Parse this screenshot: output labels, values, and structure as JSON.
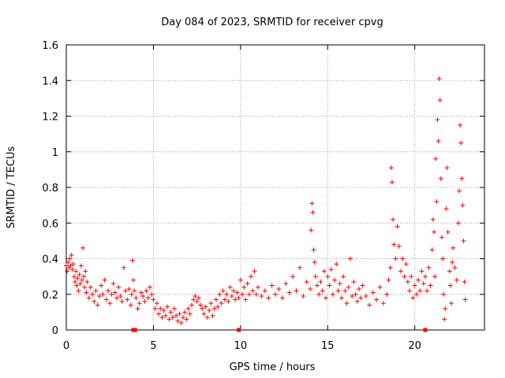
{
  "chart_data": {
    "type": "scatter",
    "title": "Day 084 of 2023, SRMTID for receiver cpvg",
    "xlabel": "GPS time / hours",
    "ylabel": "SRMTID / TECUs",
    "xlim": [
      0,
      24
    ],
    "ylim": [
      0,
      1.6
    ],
    "xticks": [
      0,
      5,
      10,
      15,
      20
    ],
    "xtick_labels": [
      "0",
      "5",
      "10",
      "15",
      "20"
    ],
    "yticks": [
      0,
      0.2,
      0.4,
      0.6,
      0.8,
      1,
      1.2,
      1.4,
      1.6
    ],
    "ytick_labels": [
      "0",
      "0.2",
      "0.4",
      "0.6",
      "0.8",
      "1",
      "1.2",
      "1.4",
      "1.6"
    ],
    "grid": true,
    "marker": "plus",
    "color": "#ff0000",
    "series": [
      {
        "name": "SRMTID",
        "points": [
          [
            0.0,
            0.36
          ],
          [
            0.05,
            0.33
          ],
          [
            0.1,
            0.38
          ],
          [
            0.15,
            0.35
          ],
          [
            0.2,
            0.4
          ],
          [
            0.25,
            0.36
          ],
          [
            0.3,
            0.42
          ],
          [
            0.35,
            0.34
          ],
          [
            0.4,
            0.37
          ],
          [
            0.45,
            0.3
          ],
          [
            0.5,
            0.27
          ],
          [
            0.55,
            0.33
          ],
          [
            0.6,
            0.25
          ],
          [
            0.65,
            0.29
          ],
          [
            0.7,
            0.22
          ],
          [
            0.75,
            0.31
          ],
          [
            0.8,
            0.26
          ],
          [
            0.85,
            0.36
          ],
          [
            0.9,
            0.28
          ],
          [
            0.95,
            0.46
          ],
          [
            1.0,
            0.3
          ],
          [
            1.05,
            0.24
          ],
          [
            1.1,
            0.33
          ],
          [
            1.15,
            0.21
          ],
          [
            1.2,
            0.27
          ],
          [
            1.3,
            0.18
          ],
          [
            1.4,
            0.24
          ],
          [
            1.5,
            0.2
          ],
          [
            1.6,
            0.16
          ],
          [
            1.7,
            0.22
          ],
          [
            1.8,
            0.14
          ],
          [
            1.9,
            0.19
          ],
          [
            2.0,
            0.25
          ],
          [
            2.1,
            0.2
          ],
          [
            2.2,
            0.28
          ],
          [
            2.3,
            0.17
          ],
          [
            2.4,
            0.22
          ],
          [
            2.5,
            0.15
          ],
          [
            2.6,
            0.2
          ],
          [
            2.7,
            0.26
          ],
          [
            2.8,
            0.21
          ],
          [
            2.9,
            0.18
          ],
          [
            3.0,
            0.24
          ],
          [
            3.1,
            0.19
          ],
          [
            3.2,
            0.16
          ],
          [
            3.3,
            0.35
          ],
          [
            3.4,
            0.22
          ],
          [
            3.5,
            0.17
          ],
          [
            3.6,
            0.23
          ],
          [
            3.7,
            0.14
          ],
          [
            3.75,
            0.2
          ],
          [
            3.8,
            0.39
          ],
          [
            3.85,
            0.28
          ],
          [
            3.9,
            0.22
          ],
          [
            4.0,
            0.18
          ],
          [
            4.1,
            0.12
          ],
          [
            4.2,
            0.15
          ],
          [
            4.3,
            0.21
          ],
          [
            4.4,
            0.19
          ],
          [
            4.5,
            0.16
          ],
          [
            4.6,
            0.22
          ],
          [
            4.7,
            0.18
          ],
          [
            4.8,
            0.24
          ],
          [
            4.9,
            0.2
          ],
          [
            5.0,
            0.17
          ],
          [
            5.1,
            0.12
          ],
          [
            5.2,
            0.15
          ],
          [
            5.3,
            0.09
          ],
          [
            5.4,
            0.12
          ],
          [
            5.5,
            0.07
          ],
          [
            5.6,
            0.11
          ],
          [
            5.7,
            0.08
          ],
          [
            5.8,
            0.13
          ],
          [
            5.9,
            0.06
          ],
          [
            6.0,
            0.1
          ],
          [
            6.1,
            0.07
          ],
          [
            6.2,
            0.12
          ],
          [
            6.3,
            0.08
          ],
          [
            6.4,
            0.05
          ],
          [
            6.5,
            0.09
          ],
          [
            6.6,
            0.04
          ],
          [
            6.7,
            0.07
          ],
          [
            6.8,
            0.1
          ],
          [
            6.9,
            0.06
          ],
          [
            7.0,
            0.12
          ],
          [
            7.1,
            0.09
          ],
          [
            7.2,
            0.14
          ],
          [
            7.3,
            0.17
          ],
          [
            7.4,
            0.19
          ],
          [
            7.5,
            0.16
          ],
          [
            7.6,
            0.18
          ],
          [
            7.7,
            0.14
          ],
          [
            7.8,
            0.12
          ],
          [
            7.9,
            0.09
          ],
          [
            8.0,
            0.13
          ],
          [
            8.1,
            0.07
          ],
          [
            8.2,
            0.11
          ],
          [
            8.3,
            0.15
          ],
          [
            8.4,
            0.08
          ],
          [
            8.5,
            0.12
          ],
          [
            8.6,
            0.17
          ],
          [
            8.7,
            0.13
          ],
          [
            8.8,
            0.2
          ],
          [
            8.9,
            0.15
          ],
          [
            9.0,
            0.22
          ],
          [
            9.1,
            0.17
          ],
          [
            9.2,
            0.2
          ],
          [
            9.3,
            0.16
          ],
          [
            9.4,
            0.24
          ],
          [
            9.5,
            0.19
          ],
          [
            9.6,
            0.22
          ],
          [
            9.7,
            0.17
          ],
          [
            9.8,
            0.21
          ],
          [
            9.9,
            0.18
          ],
          [
            10.0,
            0.28
          ],
          [
            10.1,
            0.2
          ],
          [
            10.2,
            0.24
          ],
          [
            10.3,
            0.17
          ],
          [
            10.4,
            0.26
          ],
          [
            10.5,
            0.2
          ],
          [
            10.6,
            0.3
          ],
          [
            10.7,
            0.22
          ],
          [
            10.8,
            0.33
          ],
          [
            10.9,
            0.2
          ],
          [
            11.0,
            0.24
          ],
          [
            11.2,
            0.19
          ],
          [
            11.4,
            0.22
          ],
          [
            11.6,
            0.18
          ],
          [
            11.8,
            0.25
          ],
          [
            12.0,
            0.2
          ],
          [
            12.2,
            0.23
          ],
          [
            12.4,
            0.18
          ],
          [
            12.6,
            0.26
          ],
          [
            12.8,
            0.21
          ],
          [
            13.0,
            0.3
          ],
          [
            13.2,
            0.22
          ],
          [
            13.4,
            0.35
          ],
          [
            13.6,
            0.19
          ],
          [
            13.8,
            0.27
          ],
          [
            14.0,
            0.23
          ],
          [
            14.05,
            0.56
          ],
          [
            14.1,
            0.71
          ],
          [
            14.15,
            0.66
          ],
          [
            14.2,
            0.45
          ],
          [
            14.25,
            0.38
          ],
          [
            14.3,
            0.3
          ],
          [
            14.4,
            0.25
          ],
          [
            14.5,
            0.2
          ],
          [
            14.6,
            0.27
          ],
          [
            14.7,
            0.22
          ],
          [
            14.8,
            0.33
          ],
          [
            14.9,
            0.18
          ],
          [
            15.0,
            0.3
          ],
          [
            15.1,
            0.25
          ],
          [
            15.2,
            0.34
          ],
          [
            15.3,
            0.2
          ],
          [
            15.4,
            0.28
          ],
          [
            15.5,
            0.37
          ],
          [
            15.6,
            0.22
          ],
          [
            15.7,
            0.26
          ],
          [
            15.8,
            0.18
          ],
          [
            15.9,
            0.3
          ],
          [
            16.0,
            0.22
          ],
          [
            16.1,
            0.15
          ],
          [
            16.2,
            0.24
          ],
          [
            16.3,
            0.4
          ],
          [
            16.4,
            0.19
          ],
          [
            16.5,
            0.27
          ],
          [
            16.6,
            0.2
          ],
          [
            16.7,
            0.16
          ],
          [
            16.8,
            0.23
          ],
          [
            16.9,
            0.18
          ],
          [
            17.0,
            0.25
          ],
          [
            17.2,
            0.19
          ],
          [
            17.4,
            0.14
          ],
          [
            17.6,
            0.21
          ],
          [
            17.8,
            0.17
          ],
          [
            18.0,
            0.24
          ],
          [
            18.2,
            0.15
          ],
          [
            18.4,
            0.2
          ],
          [
            18.5,
            0.28
          ],
          [
            18.6,
            0.35
          ],
          [
            18.65,
            0.91
          ],
          [
            18.7,
            0.83
          ],
          [
            18.75,
            0.62
          ],
          [
            18.8,
            0.48
          ],
          [
            18.9,
            0.4
          ],
          [
            19.0,
            0.58
          ],
          [
            19.1,
            0.47
          ],
          [
            19.2,
            0.33
          ],
          [
            19.3,
            0.4
          ],
          [
            19.4,
            0.3
          ],
          [
            19.5,
            0.37
          ],
          [
            19.6,
            0.27
          ],
          [
            19.7,
            0.22
          ],
          [
            19.8,
            0.3
          ],
          [
            19.9,
            0.18
          ],
          [
            20.0,
            0.25
          ],
          [
            20.1,
            0.2
          ],
          [
            20.2,
            0.28
          ],
          [
            20.3,
            0.22
          ],
          [
            20.4,
            0.33
          ],
          [
            20.5,
            0.26
          ],
          [
            20.6,
            0.3
          ],
          [
            20.7,
            0.22
          ],
          [
            20.8,
            0.35
          ],
          [
            20.9,
            0.25
          ],
          [
            21.0,
            0.45
          ],
          [
            21.05,
            0.62
          ],
          [
            21.1,
            0.55
          ],
          [
            21.15,
            0.3
          ],
          [
            21.2,
            0.96
          ],
          [
            21.25,
            0.72
          ],
          [
            21.3,
            1.18
          ],
          [
            21.35,
            1.06
          ],
          [
            21.4,
            1.41
          ],
          [
            21.45,
            1.29
          ],
          [
            21.5,
            0.85
          ],
          [
            21.55,
            0.52
          ],
          [
            21.6,
            0.4
          ],
          [
            21.65,
            0.2
          ],
          [
            21.7,
            0.06
          ],
          [
            21.75,
            0.12
          ],
          [
            21.8,
            0.68
          ],
          [
            21.85,
            0.91
          ],
          [
            21.9,
            0.55
          ],
          [
            22.0,
            0.33
          ],
          [
            22.05,
            0.25
          ],
          [
            22.1,
            0.15
          ],
          [
            22.15,
            0.38
          ],
          [
            22.2,
            0.46
          ],
          [
            22.3,
            0.35
          ],
          [
            22.4,
            0.28
          ],
          [
            22.5,
            0.6
          ],
          [
            22.55,
            0.78
          ],
          [
            22.6,
            1.15
          ],
          [
            22.65,
            1.05
          ],
          [
            22.7,
            0.85
          ],
          [
            22.75,
            0.7
          ],
          [
            22.8,
            0.5
          ],
          [
            22.85,
            0.27
          ],
          [
            22.9,
            0.17
          ]
        ]
      }
    ],
    "gap_markers": [
      3.85,
      3.95,
      9.9,
      20.6
    ]
  }
}
